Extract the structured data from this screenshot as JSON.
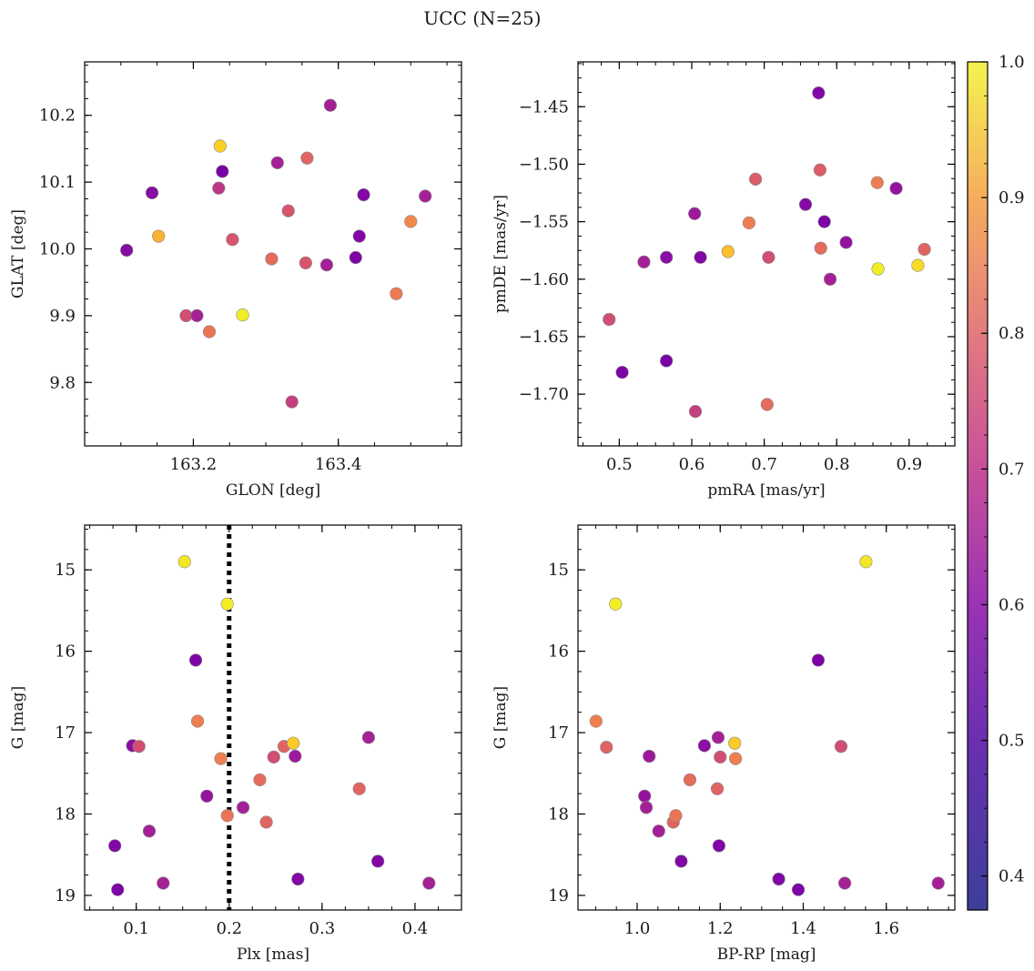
{
  "figure": {
    "title": "UCC (N=25)"
  },
  "colorbar": {
    "vmin": 0.375,
    "vmax": 1.0,
    "ticks": [
      0.4,
      0.5,
      0.6,
      0.7,
      0.8,
      0.9,
      1.0
    ],
    "tick_labels": [
      "0.4",
      "0.5",
      "0.6",
      "0.7",
      "0.8",
      "0.9",
      "1.0"
    ],
    "colormap": "plasma"
  },
  "chart_data": [
    {
      "type": "scatter",
      "xlabel": "GLON [deg]",
      "ylabel": "GLAT [deg]",
      "xlim": [
        163.05,
        163.57
      ],
      "ylim": [
        9.705,
        10.28
      ],
      "yinvert": false,
      "xticks": [
        163.2,
        163.4
      ],
      "xtick_labels": [
        "163.2",
        "163.4"
      ],
      "yticks": [
        9.8,
        9.9,
        10.0,
        10.1,
        10.2
      ],
      "ytick_labels": [
        "9.8",
        "9.9",
        "10.0",
        "10.1",
        "10.2"
      ],
      "points": [
        {
          "x": 163.108,
          "y": 9.998,
          "c": 0.45
        },
        {
          "x": 163.143,
          "y": 10.084,
          "c": 0.45
        },
        {
          "x": 163.152,
          "y": 10.019,
          "c": 0.87
        },
        {
          "x": 163.19,
          "y": 9.9,
          "c": 0.64
        },
        {
          "x": 163.205,
          "y": 9.9,
          "c": 0.52
        },
        {
          "x": 163.222,
          "y": 9.876,
          "c": 0.74
        },
        {
          "x": 163.235,
          "y": 10.091,
          "c": 0.58
        },
        {
          "x": 163.237,
          "y": 10.154,
          "c": 0.93
        },
        {
          "x": 163.24,
          "y": 10.116,
          "c": 0.42
        },
        {
          "x": 163.254,
          "y": 10.014,
          "c": 0.66
        },
        {
          "x": 163.268,
          "y": 9.901,
          "c": 0.98
        },
        {
          "x": 163.308,
          "y": 9.985,
          "c": 0.72
        },
        {
          "x": 163.316,
          "y": 10.129,
          "c": 0.52
        },
        {
          "x": 163.331,
          "y": 10.057,
          "c": 0.66
        },
        {
          "x": 163.336,
          "y": 9.771,
          "c": 0.6
        },
        {
          "x": 163.355,
          "y": 9.979,
          "c": 0.66
        },
        {
          "x": 163.357,
          "y": 10.136,
          "c": 0.7
        },
        {
          "x": 163.384,
          "y": 9.976,
          "c": 0.52
        },
        {
          "x": 163.389,
          "y": 10.215,
          "c": 0.52
        },
        {
          "x": 163.424,
          "y": 9.987,
          "c": 0.43
        },
        {
          "x": 163.429,
          "y": 10.019,
          "c": 0.44
        },
        {
          "x": 163.435,
          "y": 10.081,
          "c": 0.44
        },
        {
          "x": 163.48,
          "y": 9.933,
          "c": 0.75
        },
        {
          "x": 163.5,
          "y": 10.041,
          "c": 0.78
        },
        {
          "x": 163.52,
          "y": 10.079,
          "c": 0.52
        }
      ]
    },
    {
      "type": "scatter",
      "xlabel": "pmRA [mas/yr]",
      "ylabel": "pmDE [mas/yr]",
      "xlim": [
        0.443,
        0.963
      ],
      "ylim": [
        -1.745,
        -1.411
      ],
      "yinvert": false,
      "xticks": [
        0.5,
        0.6,
        0.7,
        0.8,
        0.9
      ],
      "xtick_labels": [
        "0.5",
        "0.6",
        "0.7",
        "0.8",
        "0.9"
      ],
      "yticks": [
        -1.7,
        -1.65,
        -1.6,
        -1.55,
        -1.5,
        -1.45
      ],
      "ytick_labels": [
        "−1.70",
        "−1.65",
        "−1.60",
        "−1.55",
        "−1.50",
        "−1.45"
      ],
      "points": [
        {
          "x": 0.486,
          "y": -1.635,
          "c": 0.64
        },
        {
          "x": 0.504,
          "y": -1.681,
          "c": 0.43
        },
        {
          "x": 0.534,
          "y": -1.585,
          "c": 0.52
        },
        {
          "x": 0.565,
          "y": -1.671,
          "c": 0.42
        },
        {
          "x": 0.565,
          "y": -1.581,
          "c": 0.46
        },
        {
          "x": 0.604,
          "y": -1.543,
          "c": 0.5
        },
        {
          "x": 0.605,
          "y": -1.715,
          "c": 0.6
        },
        {
          "x": 0.612,
          "y": -1.581,
          "c": 0.44
        },
        {
          "x": 0.65,
          "y": -1.576,
          "c": 0.9
        },
        {
          "x": 0.679,
          "y": -1.551,
          "c": 0.76
        },
        {
          "x": 0.688,
          "y": -1.513,
          "c": 0.68
        },
        {
          "x": 0.704,
          "y": -1.709,
          "c": 0.72
        },
        {
          "x": 0.706,
          "y": -1.581,
          "c": 0.64
        },
        {
          "x": 0.757,
          "y": -1.535,
          "c": 0.45
        },
        {
          "x": 0.775,
          "y": -1.438,
          "c": 0.44
        },
        {
          "x": 0.777,
          "y": -1.505,
          "c": 0.68
        },
        {
          "x": 0.778,
          "y": -1.573,
          "c": 0.72
        },
        {
          "x": 0.783,
          "y": -1.55,
          "c": 0.43
        },
        {
          "x": 0.791,
          "y": -1.6,
          "c": 0.52
        },
        {
          "x": 0.813,
          "y": -1.568,
          "c": 0.48
        },
        {
          "x": 0.856,
          "y": -1.516,
          "c": 0.76
        },
        {
          "x": 0.857,
          "y": -1.591,
          "c": 0.98
        },
        {
          "x": 0.882,
          "y": -1.521,
          "c": 0.48
        },
        {
          "x": 0.912,
          "y": -1.588,
          "c": 0.95
        },
        {
          "x": 0.921,
          "y": -1.574,
          "c": 0.7
        }
      ]
    },
    {
      "type": "scatter",
      "xlabel": "Plx [mas]",
      "ylabel": "G [mag]",
      "xlim": [
        0.0445,
        0.45
      ],
      "ylim": [
        14.45,
        19.18
      ],
      "yinvert": true,
      "xticks": [
        0.1,
        0.2,
        0.3,
        0.4
      ],
      "xtick_labels": [
        "0.1",
        "0.2",
        "0.3",
        "0.4"
      ],
      "yticks": [
        15,
        16,
        17,
        18,
        19
      ],
      "ytick_labels": [
        "15",
        "16",
        "17",
        "18",
        "19"
      ],
      "vline": {
        "x": 0.2,
        "style": "dotted",
        "color": "#000000"
      },
      "points": [
        {
          "x": 0.077,
          "y": 18.39,
          "c": 0.44
        },
        {
          "x": 0.08,
          "y": 18.93,
          "c": 0.43
        },
        {
          "x": 0.096,
          "y": 17.16,
          "c": 0.46
        },
        {
          "x": 0.103,
          "y": 17.17,
          "c": 0.64
        },
        {
          "x": 0.114,
          "y": 18.21,
          "c": 0.52
        },
        {
          "x": 0.129,
          "y": 18.85,
          "c": 0.52
        },
        {
          "x": 0.152,
          "y": 14.9,
          "c": 0.97
        },
        {
          "x": 0.164,
          "y": 16.11,
          "c": 0.43
        },
        {
          "x": 0.166,
          "y": 16.86,
          "c": 0.76
        },
        {
          "x": 0.176,
          "y": 17.78,
          "c": 0.48
        },
        {
          "x": 0.191,
          "y": 17.32,
          "c": 0.76
        },
        {
          "x": 0.198,
          "y": 15.42,
          "c": 0.98
        },
        {
          "x": 0.198,
          "y": 18.02,
          "c": 0.74
        },
        {
          "x": 0.215,
          "y": 17.92,
          "c": 0.52
        },
        {
          "x": 0.233,
          "y": 17.58,
          "c": 0.72
        },
        {
          "x": 0.24,
          "y": 18.1,
          "c": 0.7
        },
        {
          "x": 0.248,
          "y": 17.3,
          "c": 0.64
        },
        {
          "x": 0.259,
          "y": 17.17,
          "c": 0.7
        },
        {
          "x": 0.269,
          "y": 17.13,
          "c": 0.92
        },
        {
          "x": 0.271,
          "y": 17.29,
          "c": 0.5
        },
        {
          "x": 0.274,
          "y": 18.8,
          "c": 0.44
        },
        {
          "x": 0.34,
          "y": 17.69,
          "c": 0.7
        },
        {
          "x": 0.35,
          "y": 17.06,
          "c": 0.52
        },
        {
          "x": 0.36,
          "y": 18.58,
          "c": 0.44
        },
        {
          "x": 0.415,
          "y": 18.85,
          "c": 0.52
        }
      ]
    },
    {
      "type": "scatter",
      "xlabel": "BP-RP [mag]",
      "ylabel": "G [mag]",
      "xlim": [
        0.8575,
        1.765
      ],
      "ylim": [
        14.45,
        19.18
      ],
      "yinvert": true,
      "xticks": [
        1.0,
        1.2,
        1.4,
        1.6
      ],
      "xtick_labels": [
        "1.0",
        "1.2",
        "1.4",
        "1.6"
      ],
      "yticks": [
        15,
        16,
        17,
        18,
        19
      ],
      "ytick_labels": [
        "15",
        "16",
        "17",
        "18",
        "19"
      ],
      "points": [
        {
          "x": 0.901,
          "y": 16.86,
          "c": 0.76
        },
        {
          "x": 0.926,
          "y": 17.18,
          "c": 0.7
        },
        {
          "x": 0.948,
          "y": 15.42,
          "c": 0.98
        },
        {
          "x": 1.018,
          "y": 17.78,
          "c": 0.48
        },
        {
          "x": 1.022,
          "y": 17.92,
          "c": 0.52
        },
        {
          "x": 1.029,
          "y": 17.29,
          "c": 0.5
        },
        {
          "x": 1.052,
          "y": 18.21,
          "c": 0.52
        },
        {
          "x": 1.087,
          "y": 18.1,
          "c": 0.7
        },
        {
          "x": 1.093,
          "y": 18.02,
          "c": 0.74
        },
        {
          "x": 1.106,
          "y": 18.58,
          "c": 0.44
        },
        {
          "x": 1.127,
          "y": 17.58,
          "c": 0.72
        },
        {
          "x": 1.162,
          "y": 17.16,
          "c": 0.46
        },
        {
          "x": 1.193,
          "y": 17.69,
          "c": 0.7
        },
        {
          "x": 1.195,
          "y": 17.06,
          "c": 0.52
        },
        {
          "x": 1.197,
          "y": 18.39,
          "c": 0.44
        },
        {
          "x": 1.2,
          "y": 17.3,
          "c": 0.64
        },
        {
          "x": 1.235,
          "y": 17.13,
          "c": 0.92
        },
        {
          "x": 1.237,
          "y": 17.32,
          "c": 0.76
        },
        {
          "x": 1.341,
          "y": 18.8,
          "c": 0.44
        },
        {
          "x": 1.388,
          "y": 18.93,
          "c": 0.43
        },
        {
          "x": 1.436,
          "y": 16.11,
          "c": 0.43
        },
        {
          "x": 1.491,
          "y": 17.17,
          "c": 0.64
        },
        {
          "x": 1.5,
          "y": 18.85,
          "c": 0.52
        },
        {
          "x": 1.551,
          "y": 14.9,
          "c": 0.97
        },
        {
          "x": 1.725,
          "y": 18.85,
          "c": 0.52
        }
      ]
    }
  ]
}
